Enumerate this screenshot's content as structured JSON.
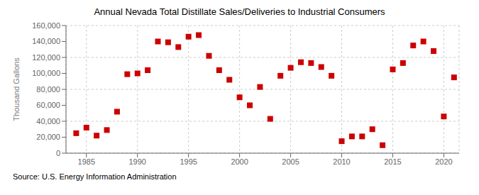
{
  "chart_data": {
    "type": "scatter",
    "title": "Annual Nevada Total Distillate Sales/Deliveries to Industrial Consumers",
    "ylabel": "Thousand Gallons",
    "annotations": [
      "Source: U.S. Energy Information Administration"
    ],
    "x": [
      1984,
      1985,
      1986,
      1987,
      1988,
      1989,
      1990,
      1991,
      1992,
      1993,
      1994,
      1995,
      1996,
      1997,
      1998,
      1999,
      2000,
      2001,
      2002,
      2003,
      2004,
      2005,
      2006,
      2007,
      2008,
      2009,
      2010,
      2011,
      2012,
      2013,
      2014,
      2015,
      2016,
      2017,
      2018,
      2019,
      2020,
      2021
    ],
    "values": [
      25000,
      32000,
      22000,
      29000,
      52000,
      99000,
      100000,
      104000,
      140000,
      139000,
      133000,
      146000,
      148000,
      122000,
      104000,
      92000,
      70000,
      60000,
      83000,
      43000,
      97000,
      107000,
      114000,
      113000,
      108000,
      97000,
      15000,
      21000,
      21000,
      30000,
      10000,
      105000,
      113000,
      135000,
      140000,
      128000,
      46000,
      95000
    ],
    "color": "#cc0000",
    "marker": "square",
    "xlim": [
      1983,
      2021.5
    ],
    "xticks": [
      1985,
      1990,
      1995,
      2000,
      2005,
      2010,
      2015,
      2020
    ],
    "ylim": [
      0,
      160000
    ],
    "yticks": [
      0,
      {
        "value": 20000,
        "label": "20,000"
      },
      {
        "value": 40000,
        "label": "40,000"
      },
      {
        "value": 60000,
        "label": "60,000"
      },
      {
        "value": 80000,
        "label": "80,000"
      },
      {
        "value": 100000,
        "label": "100,000"
      },
      {
        "value": 120000,
        "label": "120,000"
      },
      {
        "value": 140000,
        "label": "140,000"
      },
      {
        "value": 160000,
        "label": "160,000"
      }
    ],
    "grid": true
  }
}
